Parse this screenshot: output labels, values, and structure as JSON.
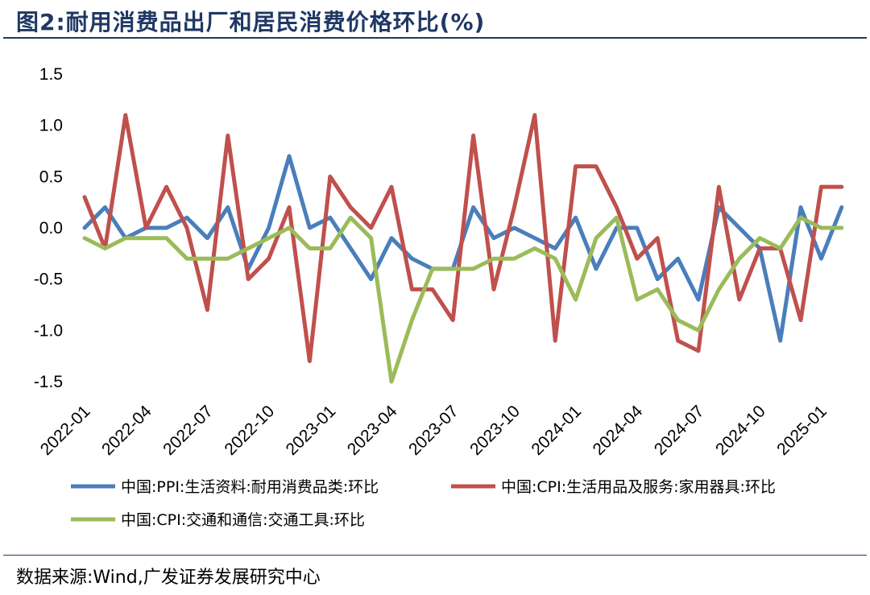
{
  "title": "图2:耐用消费品出厂和居民消费价格环比(%)",
  "source": "数据来源:Wind,广发证券发展研究中心",
  "chart_data": {
    "type": "line",
    "ylim": [
      -1.5,
      1.5
    ],
    "yticks": [
      "1.5",
      "1.0",
      "0.5",
      "0.0",
      "-0.5",
      "-1.0",
      "-1.5"
    ],
    "ytick_values": [
      1.5,
      1.0,
      0.5,
      0.0,
      -0.5,
      -1.0,
      -1.5
    ],
    "xticks": [
      "2022-01",
      "2022-04",
      "2022-07",
      "2022-10",
      "2023-01",
      "2023-04",
      "2023-07",
      "2023-10",
      "2024-01",
      "2024-04",
      "2024-07",
      "2024-10",
      "2025-01"
    ],
    "x": [
      "2022-01",
      "2022-02",
      "2022-03",
      "2022-04",
      "2022-05",
      "2022-06",
      "2022-07",
      "2022-08",
      "2022-09",
      "2022-10",
      "2022-11",
      "2022-12",
      "2023-01",
      "2023-02",
      "2023-03",
      "2023-04",
      "2023-05",
      "2023-06",
      "2023-07",
      "2023-08",
      "2023-09",
      "2023-10",
      "2023-11",
      "2023-12",
      "2024-01",
      "2024-02",
      "2024-03",
      "2024-04",
      "2024-05",
      "2024-06",
      "2024-07",
      "2024-08",
      "2024-09",
      "2024-10",
      "2024-11",
      "2024-12",
      "2025-01",
      "2025-02",
      "2025-03"
    ],
    "legend_position": "bottom",
    "grid": false,
    "series": [
      {
        "name": "中国:PPI:生活资料:耐用消费品类:环比",
        "color": "#4a7ebb",
        "values": [
          0.0,
          0.2,
          -0.1,
          0.0,
          0.0,
          0.1,
          -0.1,
          0.2,
          -0.4,
          0.0,
          0.7,
          0.0,
          0.1,
          -0.2,
          -0.5,
          -0.1,
          -0.3,
          -0.4,
          -0.4,
          0.2,
          -0.1,
          0.0,
          -0.1,
          -0.2,
          0.1,
          -0.4,
          0.0,
          0.0,
          -0.5,
          -0.3,
          -0.7,
          0.2,
          0.0,
          -0.2,
          -1.1,
          0.2,
          -0.3,
          0.2,
          null
        ]
      },
      {
        "name": "中国:CPI:生活用品及服务:家用器具:环比",
        "color": "#c0504d",
        "values": [
          0.3,
          -0.2,
          1.1,
          0.0,
          0.4,
          0.0,
          -0.8,
          0.9,
          -0.5,
          -0.3,
          0.2,
          -1.3,
          0.5,
          0.2,
          0.0,
          0.4,
          -0.6,
          -0.6,
          -0.9,
          0.9,
          -0.6,
          0.2,
          1.1,
          -1.1,
          0.6,
          0.6,
          0.2,
          -0.3,
          -0.1,
          -1.1,
          -1.2,
          0.4,
          -0.7,
          -0.2,
          -0.2,
          -0.9,
          0.4,
          0.4,
          null
        ]
      },
      {
        "name": "中国:CPI:交通和通信:交通工具:环比",
        "color": "#9bbb59",
        "values": [
          -0.1,
          -0.2,
          -0.1,
          -0.1,
          -0.1,
          -0.3,
          -0.3,
          -0.3,
          -0.2,
          -0.1,
          0.0,
          -0.2,
          -0.2,
          0.1,
          -0.1,
          -1.5,
          -0.9,
          -0.4,
          -0.4,
          -0.4,
          -0.3,
          -0.3,
          -0.2,
          -0.3,
          -0.7,
          -0.1,
          0.1,
          -0.7,
          -0.6,
          -0.9,
          -1.0,
          -0.6,
          -0.3,
          -0.1,
          -0.2,
          0.1,
          0.0,
          0.0,
          null
        ]
      }
    ]
  }
}
